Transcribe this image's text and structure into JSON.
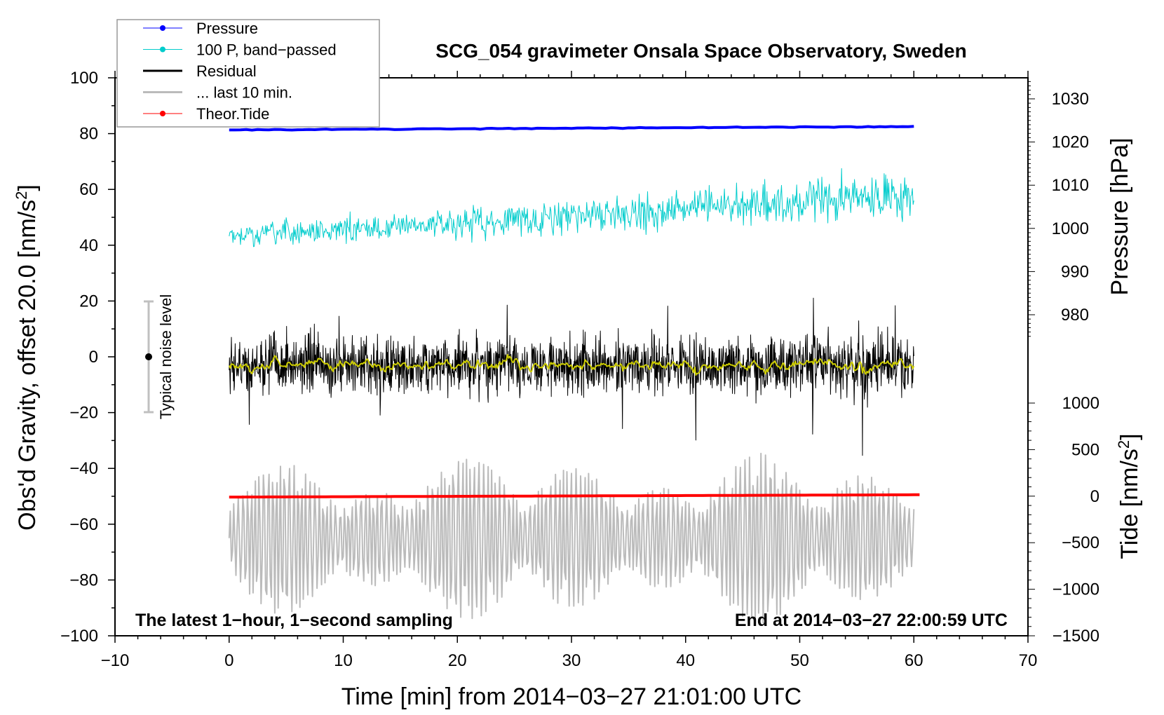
{
  "chart_data": {
    "type": "line",
    "title": "SCG_054 gravimeter Onsala Space Observatory, Sweden",
    "xlabel": "Time [min] from 2014−03−27 21:01:00 UTC",
    "ylabel": {
      "main": "Obs'd Gravity, offset 20.0 [nm/s",
      "sup": "2",
      "end": "]"
    },
    "y2label_pressure": "Pressure [hPa]",
    "y2label_tide": {
      "main": "Tide [nm/s",
      "sup": "2",
      "end": "]"
    },
    "xlim": [
      -10,
      70
    ],
    "ylim": [
      -100,
      100
    ],
    "pressure_lim": [
      980,
      1030
    ],
    "tide_lim": [
      -1500,
      1000
    ],
    "xticks": [
      "−10",
      "0",
      "10",
      "20",
      "30",
      "40",
      "50",
      "60",
      "70"
    ],
    "xtick_values": [
      -10,
      0,
      10,
      20,
      30,
      40,
      50,
      60,
      70
    ],
    "yticks": [
      "100",
      "80",
      "60",
      "40",
      "20",
      "0",
      "−20",
      "−40",
      "−60",
      "−80",
      "−100"
    ],
    "ytick_values": [
      100,
      80,
      60,
      40,
      20,
      0,
      -20,
      -40,
      -60,
      -80,
      -100
    ],
    "pressure_ticks": [
      "1030",
      "1020",
      "1010",
      "1000",
      "990",
      "980"
    ],
    "pressure_tick_values": [
      1030,
      1020,
      1010,
      1000,
      990,
      980
    ],
    "tide_ticks": [
      "1000",
      "500",
      "0",
      "−500",
      "−1000",
      "−1500"
    ],
    "tide_tick_values": [
      1000,
      500,
      0,
      -500,
      -1000,
      -1500
    ],
    "legend": {
      "placement": "top-left",
      "items": [
        {
          "label": "Pressure",
          "color": "#0000ff",
          "marker": true
        },
        {
          "label": "100 P, band−passed",
          "color": "#00cccc",
          "marker": true
        },
        {
          "label": "Residual",
          "color": "#000000",
          "marker": false
        },
        {
          "label": "... last 10 min.",
          "color": "#bbbbbb",
          "marker": false
        },
        {
          "label": "Theor.Tide",
          "color": "#ff0000",
          "marker": true
        }
      ]
    },
    "series": [
      {
        "name": "Pressure",
        "axis": "pressure_hPa",
        "x_range": [
          0,
          60
        ],
        "start": 1022.8,
        "end": 1023.6,
        "color": "#0000ff"
      },
      {
        "name": "100 P, band-passed",
        "axis": "gravity",
        "x_range": [
          0,
          60
        ],
        "start": 43,
        "end": 58,
        "noise_amplitude_start": 3,
        "noise_amplitude_end": 7,
        "color": "#00cccc"
      },
      {
        "name": "Residual",
        "axis": "gravity",
        "x_range": [
          0,
          60
        ],
        "mean": -3,
        "noise_amplitude": 12,
        "min": -36,
        "max": 23,
        "color": "#000000"
      },
      {
        "name": "Residual smoothed",
        "axis": "gravity",
        "x_range": [
          0,
          60
        ],
        "mean": -3,
        "color": "#cccc00"
      },
      {
        "name": "... last 10 min.",
        "axis": "gravity",
        "x_range": [
          0,
          60
        ],
        "mean": -65,
        "min": -88,
        "max": -38,
        "color": "#bbbbbb"
      },
      {
        "name": "Theor.Tide",
        "axis": "tide",
        "x_range": [
          0,
          60.5
        ],
        "start": -10,
        "end": 15,
        "color": "#ff0000"
      }
    ],
    "noise_bar": {
      "label": "Typical noise level",
      "x": -7,
      "center": 0,
      "low": -20,
      "high": 20
    },
    "annotations": {
      "left": "The latest 1−hour, 1−second sampling",
      "right": "End at 2014−03−27 22:00:59 UTC"
    }
  }
}
